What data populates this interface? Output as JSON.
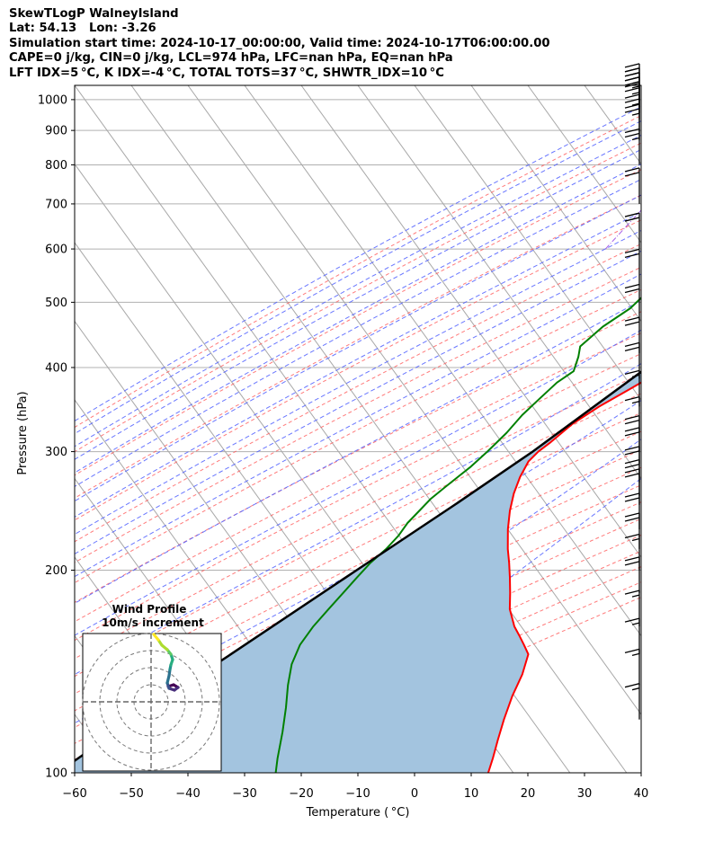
{
  "header": {
    "line1": "SkewTLogP WalneyIsland",
    "line2": "Lat: 54.13   Lon: -3.26",
    "line3": "Simulation start time: 2024-10-17_00:00:00, Valid time: 2024-10-17T06:00:00.00",
    "line4": "CAPE=0 j/kg, CIN=0 j/kg, LCL=974 hPa, LFC=nan hPa, EQ=nan hPa",
    "line5": "LFT IDX=5 °C, K IDX=-4 °C, TOTAL TOTS=37 °C, SHWTR_IDX=10 °C"
  },
  "chart_data": {
    "type": "line",
    "subtype": "skew-T log-P diagram",
    "xlabel": "Temperature ( °C)",
    "ylabel": "Pressure (hPa)",
    "xlim": [
      -60,
      40
    ],
    "ylim": [
      1050,
      100
    ],
    "y_scale": "log",
    "x_ticks": [
      "−60",
      "−50",
      "−40",
      "−30",
      "−20",
      "−10",
      "0",
      "10",
      "20",
      "30",
      "40"
    ],
    "y_ticks": [
      "100",
      "200",
      "300",
      "400",
      "500",
      "600",
      "700",
      "800",
      "900",
      "1000"
    ],
    "grid": true,
    "series": [
      {
        "role": "temperature",
        "color": "#ff0000",
        "points": [
          [
            15,
            1000
          ],
          [
            14.5,
            980
          ],
          [
            13.5,
            950
          ],
          [
            12.5,
            900
          ],
          [
            11.5,
            850
          ],
          [
            10.5,
            800
          ],
          [
            9.5,
            750
          ],
          [
            8,
            700
          ],
          [
            6,
            650
          ],
          [
            4,
            600
          ],
          [
            2.5,
            550
          ],
          [
            1,
            500
          ],
          [
            -0.5,
            470
          ],
          [
            -2,
            440
          ],
          [
            -4,
            420
          ],
          [
            -7,
            400
          ],
          [
            -11,
            370
          ],
          [
            -14,
            350
          ],
          [
            -16.5,
            330
          ],
          [
            -18,
            310
          ],
          [
            -19,
            300
          ],
          [
            -19.5,
            290
          ],
          [
            -19,
            275
          ],
          [
            -18,
            260
          ],
          [
            -16.5,
            245
          ],
          [
            -14.5,
            230
          ],
          [
            -12,
            215
          ],
          [
            -10,
            205
          ],
          [
            -8,
            195
          ],
          [
            -6,
            185
          ],
          [
            -4,
            175
          ],
          [
            -1,
            165
          ],
          [
            1,
            160
          ],
          [
            3,
            155
          ],
          [
            5,
            150
          ],
          [
            6.5,
            140
          ],
          [
            7.5,
            130
          ],
          [
            9,
            120
          ],
          [
            10.5,
            112
          ],
          [
            12,
            105
          ],
          [
            13,
            100
          ]
        ]
      },
      {
        "role": "dewpoint",
        "color": "#008000",
        "points": [
          [
            13.5,
            1000
          ],
          [
            13,
            985
          ],
          [
            12,
            975
          ],
          [
            8,
            950
          ],
          [
            4,
            920
          ],
          [
            3.5,
            900
          ],
          [
            2,
            860
          ],
          [
            0,
            820
          ],
          [
            -4,
            790
          ],
          [
            -10,
            760
          ],
          [
            -15,
            720
          ],
          [
            -16.5,
            700
          ],
          [
            -17,
            660
          ],
          [
            -17.5,
            640
          ],
          [
            -18,
            620
          ],
          [
            -18.5,
            600
          ],
          [
            -19,
            575
          ],
          [
            -19.5,
            550
          ],
          [
            -20,
            520
          ],
          [
            -21,
            490
          ],
          [
            -23.5,
            460
          ],
          [
            -25,
            430
          ],
          [
            -24,
            415
          ],
          [
            -23,
            395
          ],
          [
            -24.5,
            380
          ],
          [
            -25.5,
            360
          ],
          [
            -26.5,
            340
          ],
          [
            -27,
            320
          ],
          [
            -28,
            300
          ],
          [
            -29,
            285
          ],
          [
            -30,
            275
          ],
          [
            -31,
            265
          ],
          [
            -32,
            255
          ],
          [
            -32.5,
            245
          ],
          [
            -33,
            235
          ],
          [
            -33,
            225
          ],
          [
            -33.5,
            215
          ],
          [
            -34.5,
            205
          ],
          [
            -35,
            195
          ],
          [
            -35.5,
            185
          ],
          [
            -36,
            175
          ],
          [
            -36.5,
            165
          ],
          [
            -36.5,
            155
          ],
          [
            -35.5,
            145
          ],
          [
            -33.5,
            135
          ],
          [
            -31,
            125
          ],
          [
            -28.5,
            115
          ],
          [
            -26,
            105
          ],
          [
            -24.5,
            100
          ]
        ]
      },
      {
        "role": "parcel profile",
        "color": "#000000",
        "points": [
          [
            14,
            1000
          ],
          [
            13,
            974
          ],
          [
            10.7,
            900
          ],
          [
            8.2,
            800
          ],
          [
            5.2,
            700
          ],
          [
            1.5,
            600
          ],
          [
            -3.5,
            500
          ],
          [
            -10.5,
            400
          ],
          [
            -20,
            300
          ],
          [
            -27,
            250
          ],
          [
            -36,
            200
          ],
          [
            -47.5,
            150
          ],
          [
            -55,
            125
          ],
          [
            -63,
            100
          ]
        ]
      }
    ],
    "shaded_area": {
      "between": [
        "parcel profile",
        "temperature"
      ],
      "color": "#a3c4df"
    },
    "wind_barbs": {
      "color": "#000000",
      "side": "right",
      "pressures": [
        1000,
        985,
        970,
        955,
        935,
        900,
        870,
        800,
        700,
        600,
        530,
        470,
        420,
        385,
        350,
        320,
        300,
        288,
        270,
        258,
        250,
        230,
        215,
        200,
        185,
        165,
        150,
        135,
        120
      ],
      "speeds_kt": [
        25,
        25,
        25,
        25,
        25,
        25,
        25,
        25,
        20,
        20,
        20,
        20,
        20,
        20,
        15,
        15,
        20,
        20,
        20,
        20,
        20,
        20,
        20,
        15,
        20,
        15,
        15,
        15,
        15
      ]
    },
    "reference_lines": {
      "isotherms": "grey, skewed",
      "dry_adiabats": "red dashed",
      "moist_adiabats": "blue dashed",
      "mixing_ratio": "purple dash-dot"
    },
    "inset": {
      "title": "Wind Profile",
      "subtitle": "10m/s increment",
      "type": "hodograph",
      "rings": 4,
      "colormap": "viridis"
    }
  }
}
